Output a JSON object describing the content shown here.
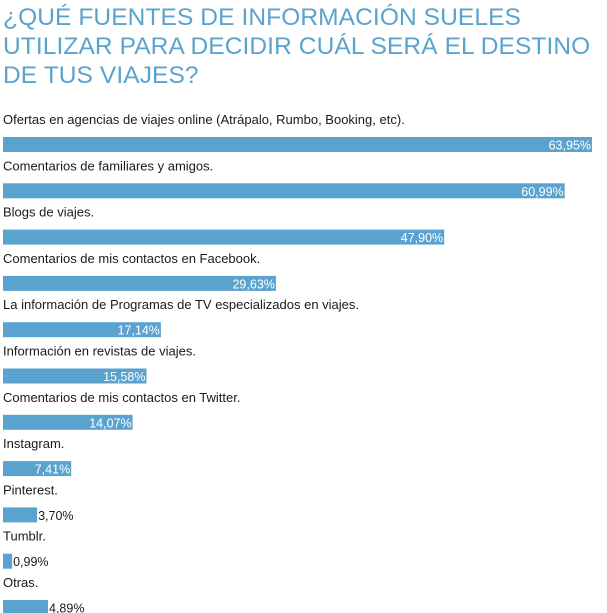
{
  "chart_data": {
    "type": "bar",
    "orientation": "horizontal",
    "title": "¿QUÉ FUENTES DE INFORMACIÓN SUELES UTILIZAR PARA DECIDIR CUÁL SERÁ EL DESTINO DE TUS VIAJES?",
    "categories": [
      "Ofertas en agencias de viajes online (Atrápalo, Rumbo, Booking, etc).",
      "Comentarios de familiares y amigos.",
      "Blogs de viajes.",
      "Comentarios de mis contactos en Facebook.",
      "La información de Programas de TV especializados en viajes.",
      "Información en revistas de viajes.",
      "Comentarios de mis contactos en Twitter.",
      "Instagram.",
      "Pinterest.",
      "Tumblr.",
      "Otras."
    ],
    "values": [
      63.95,
      60.99,
      47.9,
      29.63,
      17.14,
      15.58,
      14.07,
      7.41,
      3.7,
      0.99,
      4.89
    ],
    "value_labels": [
      "63,95%",
      "60,99%",
      "47,90%",
      "29,63%",
      "17,14%",
      "15,58%",
      "14,07%",
      "7,41%",
      "3,70%",
      "0,99%",
      "4,89%"
    ],
    "xlim": [
      0,
      63.95
    ],
    "grid": false,
    "bar_color": "#5ba3cf"
  }
}
